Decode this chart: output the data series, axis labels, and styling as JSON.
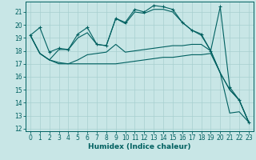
{
  "title": "",
  "xlabel": "Humidex (Indice chaleur)",
  "background_color": "#c8e6e6",
  "grid_color": "#a8d0d0",
  "line_color": "#006060",
  "xlim": [
    -0.5,
    23.5
  ],
  "ylim": [
    11.8,
    21.8
  ],
  "yticks": [
    12,
    13,
    14,
    15,
    16,
    17,
    18,
    19,
    20,
    21
  ],
  "xticks": [
    0,
    1,
    2,
    3,
    4,
    5,
    6,
    7,
    8,
    9,
    10,
    11,
    12,
    13,
    14,
    15,
    16,
    17,
    18,
    19,
    20,
    21,
    22,
    23
  ],
  "line1_x": [
    0,
    1,
    2,
    3,
    4,
    5,
    6,
    7,
    8,
    9,
    10,
    11,
    12,
    13,
    14,
    15,
    16,
    17,
    18,
    19,
    20,
    21,
    22,
    23
  ],
  "line1_y": [
    19.2,
    19.8,
    17.9,
    18.2,
    18.1,
    19.3,
    19.8,
    18.5,
    18.4,
    20.5,
    20.2,
    21.2,
    21.0,
    21.5,
    21.4,
    21.2,
    20.2,
    19.6,
    19.3,
    18.0,
    21.4,
    15.2,
    14.2,
    12.5
  ],
  "line2_x": [
    0,
    1,
    2,
    3,
    4,
    5,
    6,
    7,
    8,
    9,
    10,
    11,
    12,
    13,
    14,
    15,
    16,
    17,
    18,
    19,
    20,
    21,
    22,
    23
  ],
  "line2_y": [
    19.2,
    17.8,
    17.3,
    17.0,
    17.0,
    17.0,
    17.0,
    17.0,
    17.0,
    17.0,
    17.1,
    17.2,
    17.3,
    17.4,
    17.5,
    17.5,
    17.6,
    17.7,
    17.7,
    17.8,
    16.3,
    15.0,
    14.2,
    12.5
  ],
  "line3_x": [
    0,
    1,
    2,
    3,
    4,
    5,
    6,
    7,
    8,
    9,
    10,
    11,
    12,
    13,
    14,
    15,
    16,
    17,
    18,
    19,
    20,
    21,
    22,
    23
  ],
  "line3_y": [
    19.2,
    17.8,
    17.3,
    17.1,
    17.0,
    17.3,
    17.7,
    17.8,
    17.9,
    18.5,
    17.9,
    18.0,
    18.1,
    18.2,
    18.3,
    18.4,
    18.4,
    18.5,
    18.5,
    18.0,
    16.3,
    15.0,
    14.2,
    12.5
  ],
  "line4_x": [
    0,
    1,
    2,
    3,
    4,
    5,
    6,
    7,
    8,
    9,
    10,
    11,
    12,
    13,
    14,
    15,
    16,
    17,
    18,
    19,
    20,
    21,
    22,
    23
  ],
  "line4_y": [
    19.2,
    17.8,
    17.3,
    18.1,
    18.1,
    19.0,
    19.4,
    18.5,
    18.4,
    20.5,
    20.1,
    21.0,
    20.9,
    21.2,
    21.2,
    21.0,
    20.2,
    19.6,
    19.2,
    18.0,
    16.3,
    13.2,
    13.3,
    12.5
  ],
  "tick_fontsize": 5.5,
  "xlabel_fontsize": 6.5
}
